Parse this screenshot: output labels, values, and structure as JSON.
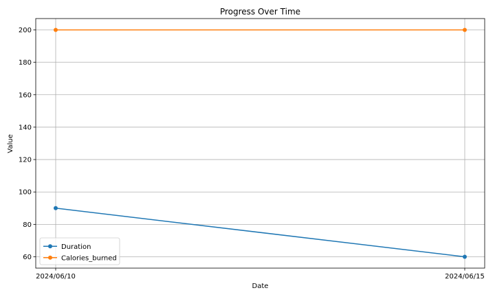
{
  "chart_data": {
    "type": "line",
    "title": "Progress Over Time",
    "xlabel": "Date",
    "ylabel": "Value",
    "x": [
      "2024/06/10",
      "2024/06/15"
    ],
    "x_tick_labels": [
      "2024/06/10",
      "2024/06/15"
    ],
    "ylim": [
      53,
      207
    ],
    "y_ticks": [
      60,
      80,
      100,
      120,
      140,
      160,
      180,
      200
    ],
    "grid": true,
    "legend_position": "lower-left",
    "series": [
      {
        "name": "Duration",
        "values": [
          90,
          60
        ],
        "color": "#1f77b4",
        "marker": "circle"
      },
      {
        "name": "Calories_burned",
        "values": [
          200,
          200
        ],
        "color": "#ff7f0e",
        "marker": "circle"
      }
    ]
  }
}
